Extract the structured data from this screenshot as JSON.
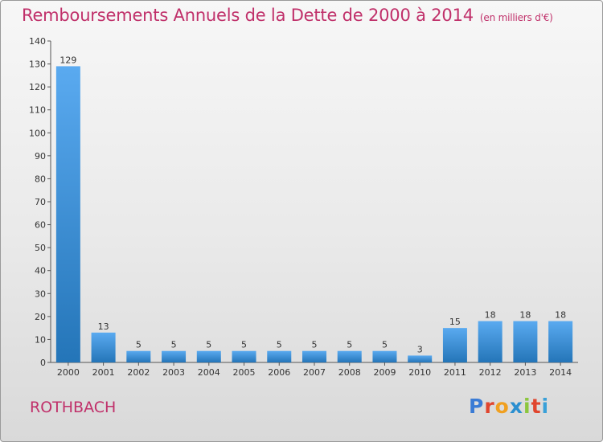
{
  "header": {
    "title": "Remboursements Annuels de la Dette de 2000 à 2014",
    "unit": "(en milliers d'€)"
  },
  "footer": {
    "commune": "ROTHBACH",
    "brand": "Proxiti"
  },
  "colors": {
    "title": "#c0306a",
    "bar_light": "#5aaaf0",
    "bar_dark": "#2475b8",
    "brand_letters": [
      "#3a7bd5",
      "#e0452e",
      "#f0a020",
      "#2b8fd0",
      "#8cc63f",
      "#e0452e",
      "#3aa0d8"
    ]
  },
  "chart_data": {
    "type": "bar",
    "categories": [
      "2000",
      "2001",
      "2002",
      "2003",
      "2004",
      "2005",
      "2006",
      "2007",
      "2008",
      "2009",
      "2010",
      "2011",
      "2012",
      "2013",
      "2014"
    ],
    "values": [
      129,
      13,
      5,
      5,
      5,
      5,
      5,
      5,
      5,
      5,
      3,
      15,
      18,
      18,
      18
    ],
    "title": "Remboursements Annuels de la Dette de 2000 à 2014",
    "xlabel": "",
    "ylabel": "",
    "ylim": [
      0,
      140
    ],
    "yticks": [
      0,
      10,
      20,
      30,
      40,
      50,
      60,
      70,
      80,
      90,
      100,
      110,
      120,
      130,
      140
    ],
    "grid": false,
    "legend": "none"
  }
}
